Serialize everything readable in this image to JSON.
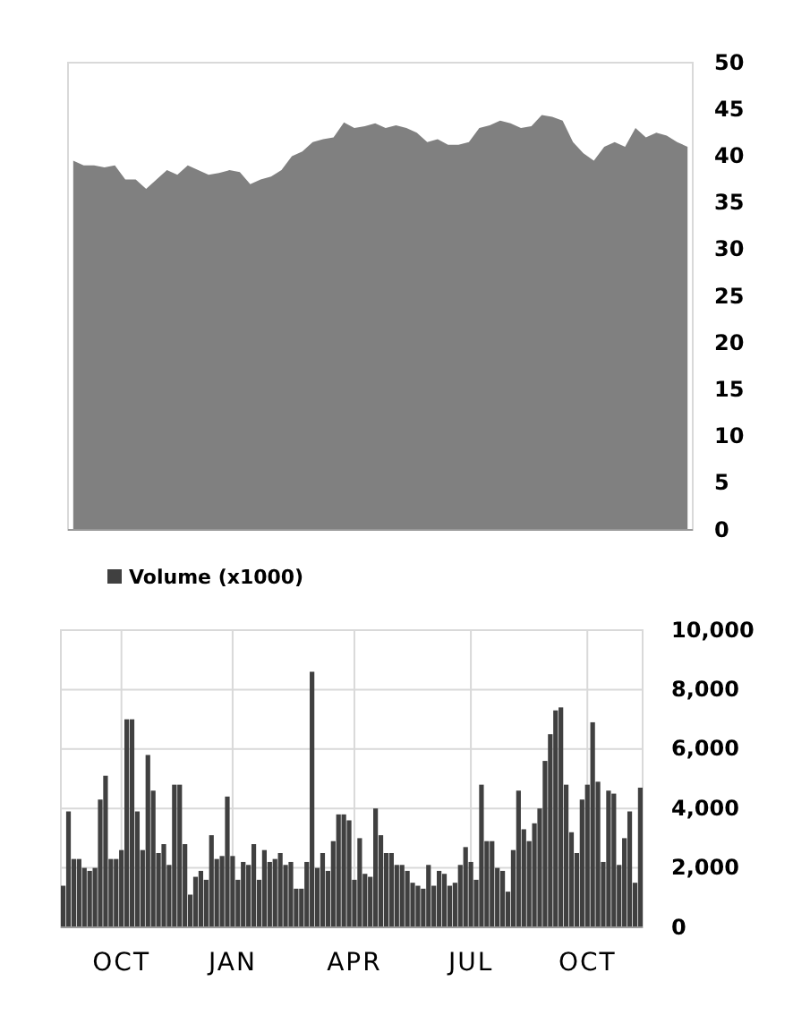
{
  "chart_data": [
    {
      "type": "area",
      "categories": [
        null,
        null,
        null,
        null,
        null,
        null,
        null,
        null,
        null,
        null,
        null,
        null,
        null,
        null,
        null,
        null,
        null,
        null,
        null,
        null,
        null,
        null,
        null,
        null,
        null,
        null,
        null,
        null,
        null,
        null,
        null,
        null,
        null,
        null,
        null,
        null,
        null,
        null,
        null,
        null,
        null,
        null,
        null,
        null,
        null,
        null,
        null,
        null,
        null,
        null,
        null,
        null,
        null,
        null,
        null,
        null,
        null,
        null,
        null,
        null
      ],
      "series": [
        {
          "color": "#808080",
          "values": [
            39.5,
            39,
            39,
            38.8,
            39,
            37.5,
            37.5,
            36.5,
            37.5,
            38.5,
            38,
            39,
            38.5,
            38,
            38.2,
            38.5,
            38.3,
            37,
            37.5,
            37.8,
            38.5,
            40,
            40.5,
            41.5,
            41.8,
            42,
            43.6,
            43,
            43.2,
            43.5,
            43,
            43.3,
            43,
            42.5,
            41.5,
            41.8,
            41.2,
            41.2,
            41.5,
            43,
            43.3,
            43.8,
            43.5,
            43,
            43.2,
            44.4,
            44.2,
            43.8,
            41.5,
            40.3,
            39.5,
            41,
            41.5,
            41,
            43,
            42,
            42.5,
            42.2,
            41.5,
            41
          ]
        }
      ],
      "ylim": [
        0,
        50
      ],
      "yticks": [
        0,
        5,
        10,
        15,
        20,
        25,
        30,
        35,
        40,
        45,
        50
      ],
      "tick_labels": "y",
      "grid": false
    },
    {
      "type": "bar",
      "categories": [
        null,
        null,
        null,
        null,
        null,
        null,
        null,
        null,
        null,
        null,
        null,
        "OCT",
        null,
        null,
        null,
        null,
        null,
        null,
        null,
        null,
        null,
        null,
        null,
        null,
        null,
        null,
        null,
        null,
        null,
        null,
        null,
        null,
        "JAN",
        null,
        null,
        null,
        null,
        null,
        null,
        null,
        null,
        null,
        null,
        null,
        null,
        null,
        null,
        null,
        null,
        null,
        null,
        null,
        null,
        null,
        null,
        "APR",
        null,
        null,
        null,
        null,
        null,
        null,
        null,
        null,
        null,
        null,
        null,
        null,
        null,
        null,
        null,
        null,
        null,
        null,
        null,
        null,
        null,
        "JUL",
        null,
        null,
        null,
        null,
        null,
        null,
        null,
        null,
        null,
        null,
        null,
        null,
        null,
        null,
        null,
        null,
        null,
        null,
        null,
        null,
        null,
        "OCT",
        null,
        null,
        null,
        null,
        null,
        null,
        null,
        null,
        null,
        null
      ],
      "series": [
        {
          "name": "Volume (x1000)",
          "color": "#404040",
          "values": [
            1400,
            3900,
            2300,
            2300,
            2000,
            1900,
            2000,
            4300,
            5100,
            2300,
            2300,
            2600,
            7000,
            7000,
            3900,
            2600,
            5800,
            4600,
            2500,
            2800,
            2100,
            4800,
            4800,
            2800,
            1100,
            1700,
            1900,
            1600,
            3100,
            2300,
            2400,
            4400,
            2400,
            1600,
            2200,
            2100,
            2800,
            1600,
            2600,
            2200,
            2300,
            2500,
            2100,
            2200,
            1300,
            1300,
            2200,
            8600,
            2000,
            2500,
            1900,
            2900,
            3800,
            3800,
            3600,
            1600,
            3000,
            1800,
            1700,
            4000,
            3100,
            2500,
            2500,
            2100,
            2100,
            1900,
            1500,
            1400,
            1300,
            2100,
            1400,
            1900,
            1800,
            1400,
            1500,
            2100,
            2700,
            2200,
            1600,
            4800,
            2900,
            2900,
            2000,
            1900,
            1200,
            2600,
            4600,
            3300,
            2900,
            3500,
            4000,
            5600,
            6500,
            7300,
            7400,
            4800,
            3200,
            2500,
            4300,
            4800,
            6900,
            4900,
            2200,
            4600,
            4500,
            2100,
            3000,
            3900,
            1500,
            4700
          ]
        }
      ],
      "ylim": [
        0,
        10000
      ],
      "yticks": [
        0,
        {
          "value": 2000,
          "label": "2,000"
        },
        {
          "value": 4000,
          "label": "4,000"
        },
        {
          "value": 6000,
          "label": "6,000"
        },
        {
          "value": 8000,
          "label": "8,000"
        },
        {
          "value": 10000,
          "label": "10,000"
        }
      ],
      "grid": true,
      "legend": "top left"
    }
  ]
}
